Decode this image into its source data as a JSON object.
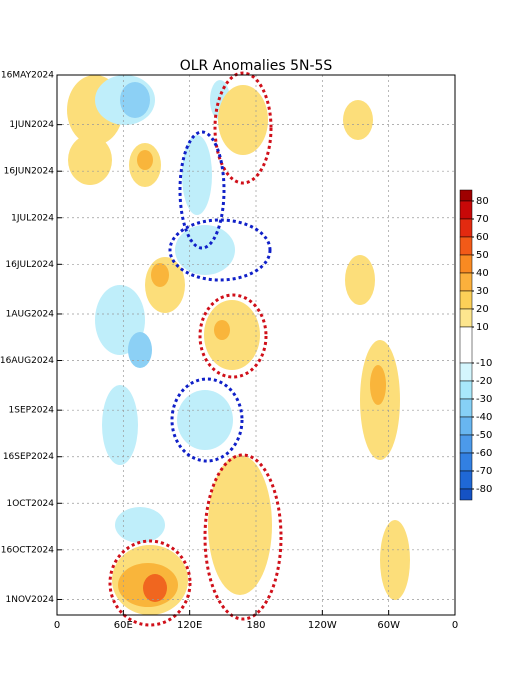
{
  "chart_data": {
    "type": "hovmoller",
    "title": "OLR Anomalies 5N-5S",
    "xlim": [
      0,
      360
    ],
    "xticks": [
      0,
      {
        "value": 60,
        "label": "60E"
      },
      {
        "value": 120,
        "label": "120E"
      },
      {
        "value": 180,
        "label": "180"
      },
      {
        "value": 240,
        "label": "120W"
      },
      {
        "value": 300,
        "label": "60W"
      },
      {
        "value": 360,
        "label": "0"
      }
    ],
    "ylim": [
      "2024-05-16",
      "2024-11-06"
    ],
    "yticks": [
      {
        "value": "2024-05-16",
        "label": "16MAY2024"
      },
      {
        "value": "2024-06-01",
        "label": "1JUN2024"
      },
      {
        "value": "2024-06-16",
        "label": "16JUN2024"
      },
      {
        "value": "2024-07-01",
        "label": "1JUL2024"
      },
      {
        "value": "2024-07-16",
        "label": "16JUL2024"
      },
      {
        "value": "2024-08-01",
        "label": "1AUG2024"
      },
      {
        "value": "2024-08-16",
        "label": "16AUG2024"
      },
      {
        "value": "2024-09-01",
        "label": "1SEP2024"
      },
      {
        "value": "2024-09-16",
        "label": "16SEP2024"
      },
      {
        "value": "2024-10-01",
        "label": "1OCT2024"
      },
      {
        "value": "2024-10-16",
        "label": "16OCT2024"
      },
      {
        "value": "2024-11-01",
        "label": "1NOV2024"
      }
    ],
    "grid": true,
    "colorbar": {
      "ticks": [
        80,
        70,
        60,
        50,
        40,
        30,
        20,
        10,
        -10,
        -20,
        -30,
        -40,
        -50,
        -60,
        -70,
        -80
      ],
      "colors": [
        "#9e0000",
        "#c80808",
        "#e22a10",
        "#f25a18",
        "#f98a22",
        "#fbb03c",
        "#fcd058",
        "#fde68e",
        "#ffffff",
        "#d4f6fd",
        "#a8e8fb",
        "#86d0f6",
        "#68b6f0",
        "#4c9aea",
        "#3280e2",
        "#1f68d6",
        "#1552c4"
      ]
    }
  }
}
